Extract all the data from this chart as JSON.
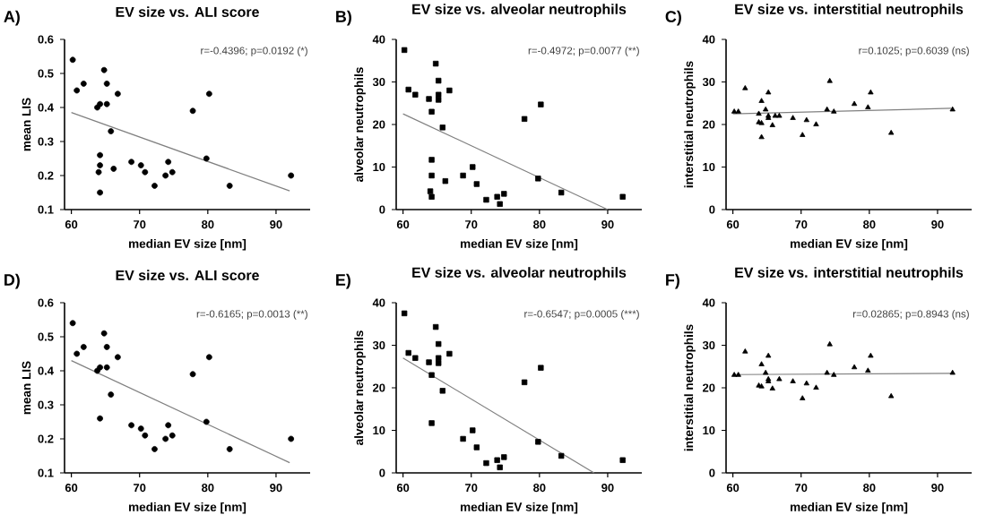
{
  "chart_data": [
    {
      "type": "scatter",
      "title": "EV size vs. ALI score",
      "xlabel": "median EV size [nm]",
      "ylabel": "mean LIS",
      "annotations": [
        "A)",
        "r=-0.4396; p=0.0192 (*)"
      ],
      "xlim": [
        59,
        95
      ],
      "ylim": [
        0.1,
        0.6
      ],
      "xticks": [
        60,
        70,
        80,
        90
      ],
      "yticks": [
        0.1,
        0.2,
        0.3,
        0.4,
        0.5,
        0.6
      ],
      "series": [
        {
          "marker": "circle",
          "color": "#000000",
          "x": [
            60.2,
            60.8,
            61.8,
            63.8,
            64.2,
            64.8,
            65.2,
            65.2,
            65.8,
            66.8,
            64.0,
            64.2,
            64.2,
            64.2,
            66.2,
            68.8,
            70.2,
            70.8,
            72.2,
            73.8,
            74.2,
            74.8,
            77.8,
            79.8,
            80.2,
            83.2,
            92.2
          ],
          "values": [
            0.54,
            0.45,
            0.47,
            0.4,
            0.41,
            0.51,
            0.47,
            0.41,
            0.33,
            0.44,
            0.21,
            0.26,
            0.23,
            0.15,
            0.22,
            0.24,
            0.23,
            0.21,
            0.17,
            0.2,
            0.24,
            0.21,
            0.39,
            0.25,
            0.44,
            0.17,
            0.2
          ]
        },
        {
          "type": "line",
          "marker": "none",
          "color": "#808080",
          "x": [
            60,
            92
          ],
          "values": [
            0.385,
            0.155
          ]
        }
      ]
    },
    {
      "type": "scatter",
      "title": "EV size vs. alveolar neutrophils",
      "xlabel": "median EV size [nm]",
      "ylabel": "alveolar neutrophils",
      "annotations": [
        "B)",
        "r=-0.4972; p=0.0077 (**)"
      ],
      "xlim": [
        59,
        95
      ],
      "ylim": [
        0,
        40
      ],
      "xticks": [
        60,
        70,
        80,
        90
      ],
      "yticks": [
        0,
        10,
        20,
        30,
        40
      ],
      "series": [
        {
          "marker": "square",
          "color": "#000000",
          "x": [
            60.2,
            60.8,
            61.8,
            63.8,
            64.2,
            64.8,
            65.2,
            65.2,
            65.2,
            65.8,
            66.8,
            64.0,
            64.2,
            64.2,
            64.2,
            66.2,
            68.8,
            70.2,
            70.8,
            72.2,
            73.8,
            74.2,
            74.8,
            77.8,
            79.8,
            80.2,
            83.2,
            92.2
          ],
          "values": [
            37.5,
            28.2,
            27,
            26,
            23,
            34.3,
            30.3,
            27,
            25.8,
            19.3,
            28,
            4.3,
            11.7,
            8,
            3,
            6.7,
            8,
            10,
            6,
            2.3,
            3,
            1.3,
            3.7,
            21.3,
            7.3,
            24.7,
            4,
            3
          ]
        },
        {
          "type": "line",
          "marker": "none",
          "color": "#808080",
          "x": [
            60,
            90
          ],
          "values": [
            22.5,
            0
          ]
        }
      ]
    },
    {
      "type": "scatter",
      "title": "EV size vs. interstitial neutrophils",
      "xlabel": "median EV size [nm]",
      "ylabel": "interstitial neutrophils",
      "annotations": [
        "C)",
        "r=0.1025; p=0.6039 (ns)"
      ],
      "xlim": [
        59,
        95
      ],
      "ylim": [
        0,
        40
      ],
      "xticks": [
        60,
        70,
        80,
        90
      ],
      "yticks": [
        0,
        10,
        20,
        30,
        40
      ],
      "series": [
        {
          "marker": "triangle",
          "color": "#000000",
          "x": [
            60.2,
            60.8,
            61.8,
            63.8,
            63.8,
            64.2,
            64.2,
            64.2,
            64.8,
            65.2,
            65.2,
            65.2,
            65.8,
            66.2,
            66.8,
            68.8,
            70.2,
            70.8,
            72.2,
            73.8,
            74.2,
            74.8,
            77.8,
            79.8,
            80.2,
            83.2,
            92.2
          ],
          "values": [
            23,
            23,
            28.5,
            22.5,
            20.5,
            25.5,
            20.3,
            17,
            23.5,
            27.5,
            22,
            21.5,
            19.8,
            22,
            22,
            21.5,
            17.5,
            21,
            20,
            23.5,
            30.2,
            23,
            24.8,
            24,
            27.5,
            18,
            23.5
          ]
        },
        {
          "type": "line",
          "marker": "none",
          "color": "#808080",
          "x": [
            60,
            92
          ],
          "values": [
            22.5,
            23.8
          ]
        }
      ]
    },
    {
      "type": "scatter",
      "title": "EV size vs. ALI score",
      "xlabel": "median EV size [nm]",
      "ylabel": "mean LIS",
      "annotations": [
        "D)",
        "r=-0.6165; p=0.0013 (**)"
      ],
      "xlim": [
        59,
        95
      ],
      "ylim": [
        0.1,
        0.6
      ],
      "xticks": [
        60,
        70,
        80,
        90
      ],
      "yticks": [
        0.1,
        0.2,
        0.3,
        0.4,
        0.5,
        0.6
      ],
      "series": [
        {
          "marker": "circle",
          "color": "#000000",
          "x": [
            60.2,
            60.8,
            61.8,
            63.8,
            64.2,
            64.8,
            65.2,
            65.2,
            65.8,
            66.8,
            64.2,
            68.8,
            70.2,
            70.8,
            72.2,
            73.8,
            74.2,
            74.8,
            77.8,
            79.8,
            80.2,
            83.2,
            92.2
          ],
          "values": [
            0.54,
            0.45,
            0.47,
            0.4,
            0.41,
            0.51,
            0.47,
            0.41,
            0.33,
            0.44,
            0.26,
            0.24,
            0.23,
            0.21,
            0.17,
            0.2,
            0.24,
            0.21,
            0.39,
            0.25,
            0.44,
            0.17,
            0.2
          ]
        },
        {
          "type": "line",
          "marker": "none",
          "color": "#808080",
          "x": [
            60,
            92
          ],
          "values": [
            0.43,
            0.13
          ]
        }
      ]
    },
    {
      "type": "scatter",
      "title": "EV size vs. alveolar neutrophils",
      "xlabel": "median EV size [nm]",
      "ylabel": "alveolar neutrophils",
      "annotations": [
        "E)",
        "r=-0.6547; p=0.0005 (***)"
      ],
      "xlim": [
        59,
        95
      ],
      "ylim": [
        0,
        40
      ],
      "xticks": [
        60,
        70,
        80,
        90
      ],
      "yticks": [
        0,
        10,
        20,
        30,
        40
      ],
      "series": [
        {
          "marker": "square",
          "color": "#000000",
          "x": [
            60.2,
            60.8,
            61.8,
            63.8,
            64.2,
            64.8,
            65.2,
            65.2,
            65.2,
            65.8,
            66.8,
            64.2,
            68.8,
            70.2,
            70.8,
            72.2,
            73.8,
            74.2,
            74.8,
            77.8,
            79.8,
            80.2,
            83.2,
            92.2
          ],
          "values": [
            37.5,
            28.2,
            27,
            26,
            23,
            34.3,
            30.3,
            27,
            25.8,
            19.3,
            28,
            11.7,
            8,
            10,
            6,
            2.3,
            3,
            1.3,
            3.7,
            21.3,
            7.3,
            24.7,
            4,
            3
          ]
        },
        {
          "type": "line",
          "marker": "none",
          "color": "#808080",
          "x": [
            60,
            88
          ],
          "values": [
            27,
            0
          ]
        }
      ]
    },
    {
      "type": "scatter",
      "title": "EV size vs. interstitial neutrophils",
      "xlabel": "median EV size [nm]",
      "ylabel": "interstitial neutrophils",
      "annotations": [
        "F)",
        "r=0.02865; p=0.8943 (ns)"
      ],
      "xlim": [
        59,
        95
      ],
      "ylim": [
        0,
        40
      ],
      "xticks": [
        60,
        70,
        80,
        90
      ],
      "yticks": [
        0,
        10,
        20,
        30,
        40
      ],
      "series": [
        {
          "marker": "triangle",
          "color": "#000000",
          "x": [
            60.2,
            60.8,
            61.8,
            63.8,
            64.2,
            64.2,
            64.8,
            65.2,
            65.2,
            65.2,
            65.8,
            66.8,
            68.8,
            70.2,
            70.8,
            72.2,
            73.8,
            74.2,
            74.8,
            77.8,
            79.8,
            80.2,
            83.2,
            92.2
          ],
          "values": [
            23,
            23,
            28.5,
            20.5,
            25.5,
            20.3,
            23.5,
            27.5,
            22,
            21.5,
            19.8,
            22,
            21.5,
            17.5,
            21,
            20,
            23.5,
            30.2,
            23,
            24.8,
            24,
            27.5,
            18,
            23.5
          ]
        },
        {
          "type": "line",
          "marker": "none",
          "color": "#808080",
          "x": [
            60,
            92
          ],
          "values": [
            23.1,
            23.4
          ]
        }
      ]
    }
  ]
}
